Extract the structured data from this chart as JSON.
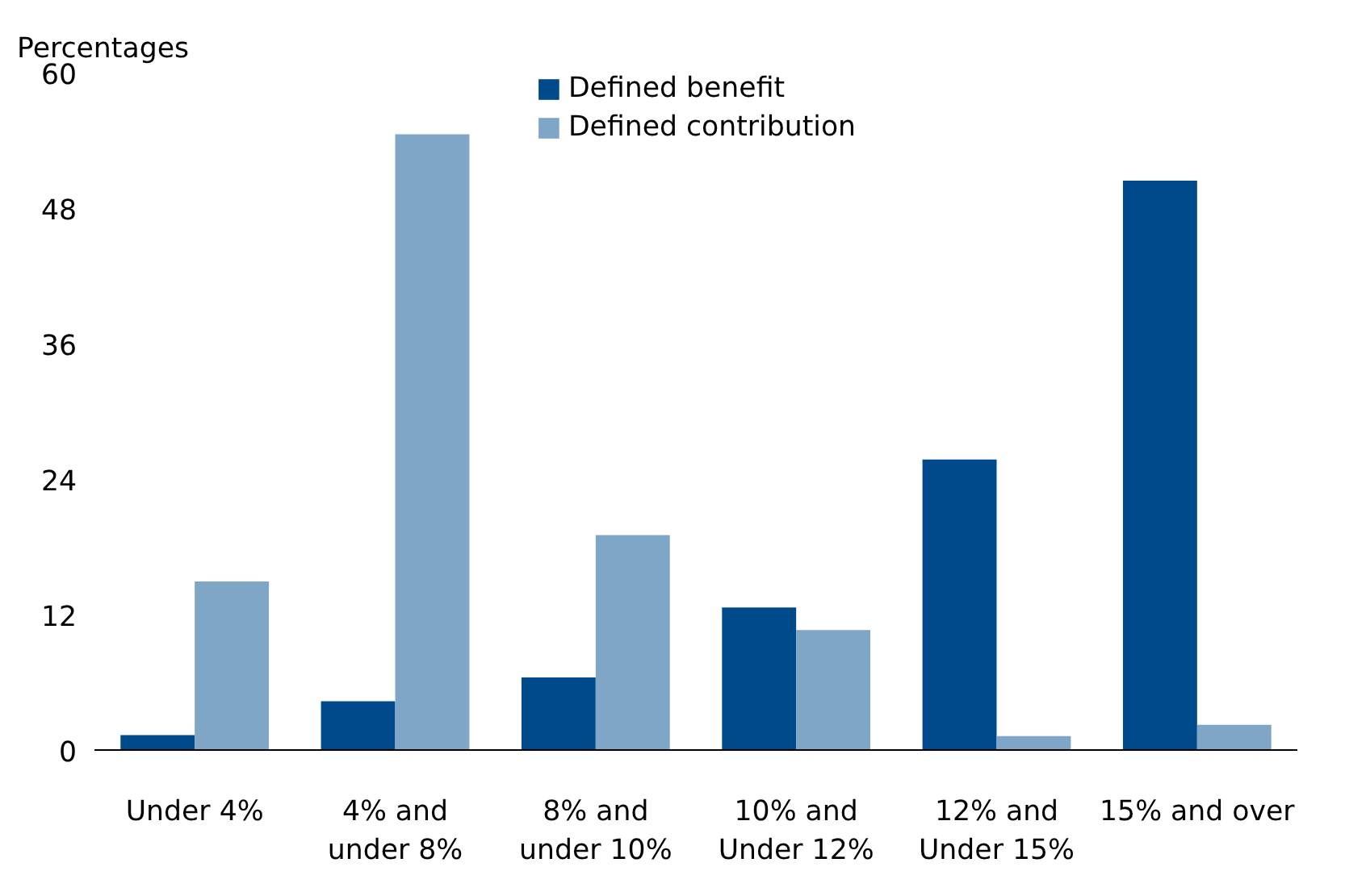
{
  "chart_data": {
    "type": "bar",
    "ylabel": "Percentages",
    "categories": [
      "Under 4%",
      "4% and\nunder 8%",
      "8% and\nunder 10%",
      "10% and\nUnder 12%",
      "12% and\nUnder 15%",
      "15% and over"
    ],
    "series": [
      {
        "name": "Defined benefit",
        "color": "#004a8c",
        "values": [
          1.4,
          4.4,
          6.5,
          12.7,
          25.8,
          50.5
        ]
      },
      {
        "name": "Defined contribution",
        "color": "#7fa5c7",
        "values": [
          15.0,
          54.6,
          19.1,
          10.7,
          1.3,
          2.3
        ]
      }
    ],
    "ylim": [
      0,
      60
    ],
    "yticks": [
      0,
      12,
      24,
      36,
      48,
      60
    ],
    "grid": false,
    "legend": "top"
  }
}
